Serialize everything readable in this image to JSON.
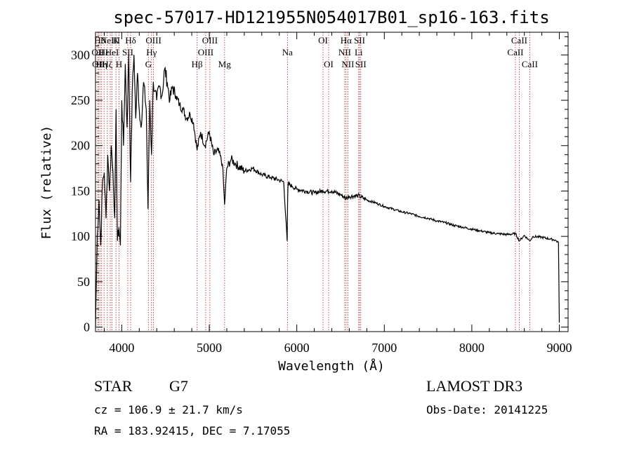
{
  "chart_data": {
    "type": "line",
    "title": "spec-57017-HD121955N054017B01_sp16-163.fits",
    "xlabel": "Wavelength (Å)",
    "ylabel": "Flux (relative)",
    "xlim": [
      3700,
      9100
    ],
    "ylim": [
      -5,
      325
    ],
    "xticks": [
      4000,
      5000,
      6000,
      7000,
      8000,
      9000
    ],
    "yticks": [
      0,
      50,
      100,
      150,
      200,
      250,
      300
    ],
    "spectrum": {
      "x": [
        3700,
        3720,
        3740,
        3760,
        3780,
        3800,
        3820,
        3840,
        3860,
        3880,
        3900,
        3920,
        3935,
        3950,
        3968,
        3985,
        4000,
        4020,
        4040,
        4060,
        4080,
        4101,
        4120,
        4140,
        4160,
        4180,
        4200,
        4220,
        4250,
        4280,
        4300,
        4320,
        4340,
        4360,
        4380,
        4400,
        4430,
        4460,
        4490,
        4520,
        4550,
        4580,
        4620,
        4660,
        4700,
        4740,
        4780,
        4820,
        4861,
        4900,
        4950,
        5000,
        5050,
        5100,
        5150,
        5175,
        5200,
        5250,
        5300,
        5400,
        5500,
        5600,
        5700,
        5800,
        5850,
        5890,
        5895,
        5900,
        5950,
        6000,
        6100,
        6200,
        6300,
        6400,
        6500,
        6563,
        6600,
        6700,
        6800,
        6900,
        7000,
        7100,
        7200,
        7300,
        7400,
        7500,
        7600,
        7700,
        7800,
        7900,
        8000,
        8100,
        8200,
        8300,
        8400,
        8500,
        8542,
        8600,
        8662,
        8700,
        8800,
        8900,
        8950,
        8990,
        9000
      ],
      "y": [
        0,
        100,
        140,
        90,
        160,
        170,
        120,
        190,
        150,
        200,
        170,
        120,
        240,
        95,
        110,
        90,
        250,
        200,
        290,
        220,
        300,
        160,
        260,
        300,
        230,
        280,
        240,
        220,
        270,
        240,
        130,
        250,
        190,
        270,
        260,
        250,
        265,
        255,
        285,
        270,
        250,
        265,
        255,
        245,
        240,
        230,
        235,
        225,
        195,
        215,
        200,
        215,
        190,
        195,
        180,
        135,
        175,
        185,
        180,
        172,
        175,
        168,
        165,
        162,
        160,
        95,
        140,
        158,
        155,
        152,
        150,
        148,
        150,
        150,
        146,
        142,
        144,
        145,
        140,
        137,
        133,
        130,
        127,
        125,
        122,
        120,
        117,
        115,
        112,
        110,
        108,
        106,
        104,
        103,
        102,
        103,
        95,
        101,
        95,
        100,
        99,
        97,
        96,
        93,
        5
      ]
    },
    "line_markers": [
      {
        "wavelength": 3727,
        "label": "OII",
        "row": 1
      },
      {
        "wavelength": 3733,
        "label": "OII",
        "row": 2
      },
      {
        "wavelength": 3750,
        "label": "Hθ",
        "row": 0
      },
      {
        "wavelength": 3770,
        "label": "Hη",
        "row": 2
      },
      {
        "wavelength": 3798,
        "label": "Hε",
        "row": 1
      },
      {
        "wavelength": 3835,
        "label": "Hζ",
        "row": 2
      },
      {
        "wavelength": 3869,
        "label": "NeIII",
        "row": 0
      },
      {
        "wavelength": 3889,
        "label": "HeI",
        "row": 1
      },
      {
        "wavelength": 3934,
        "label": "K",
        "row": 0
      },
      {
        "wavelength": 3968,
        "label": "H",
        "row": 2
      },
      {
        "wavelength": 4069,
        "label": "SII",
        "row": 1
      },
      {
        "wavelength": 4101,
        "label": "Hδ",
        "row": 0
      },
      {
        "wavelength": 4304,
        "label": "G",
        "row": 2
      },
      {
        "wavelength": 4340,
        "label": "Hγ",
        "row": 1
      },
      {
        "wavelength": 4363,
        "label": "OIII",
        "row": 0
      },
      {
        "wavelength": 4861,
        "label": "Hβ",
        "row": 2
      },
      {
        "wavelength": 4959,
        "label": "OIII",
        "row": 1
      },
      {
        "wavelength": 5007,
        "label": "OIII",
        "row": 0
      },
      {
        "wavelength": 5175,
        "label": "Mg",
        "row": 2
      },
      {
        "wavelength": 5893,
        "label": "Na",
        "row": 1
      },
      {
        "wavelength": 6300,
        "label": "OI",
        "row": 0
      },
      {
        "wavelength": 6364,
        "label": "OI",
        "row": 2
      },
      {
        "wavelength": 6548,
        "label": "NII",
        "row": 1
      },
      {
        "wavelength": 6563,
        "label": "Hα",
        "row": 0
      },
      {
        "wavelength": 6584,
        "label": "NII",
        "row": 2
      },
      {
        "wavelength": 6707,
        "label": "Li",
        "row": 1
      },
      {
        "wavelength": 6717,
        "label": "SII",
        "row": 0
      },
      {
        "wavelength": 6731,
        "label": "SII",
        "row": 2
      },
      {
        "wavelength": 8498,
        "label": "CaII",
        "row": 1
      },
      {
        "wavelength": 8542,
        "label": "CaII",
        "row": 0
      },
      {
        "wavelength": 8662,
        "label": "CaII",
        "row": 2
      }
    ],
    "colors": {
      "spectrum": "#000000",
      "line_marker": "#b22222"
    }
  },
  "info": {
    "class": "STAR",
    "subclass": "G7",
    "survey": "LAMOST DR3",
    "cz": "cz = 106.9 ± 21.7 km/s",
    "obs_date": "Obs-Date: 20141225",
    "coords": "RA = 183.92415, DEC =    7.17055"
  }
}
